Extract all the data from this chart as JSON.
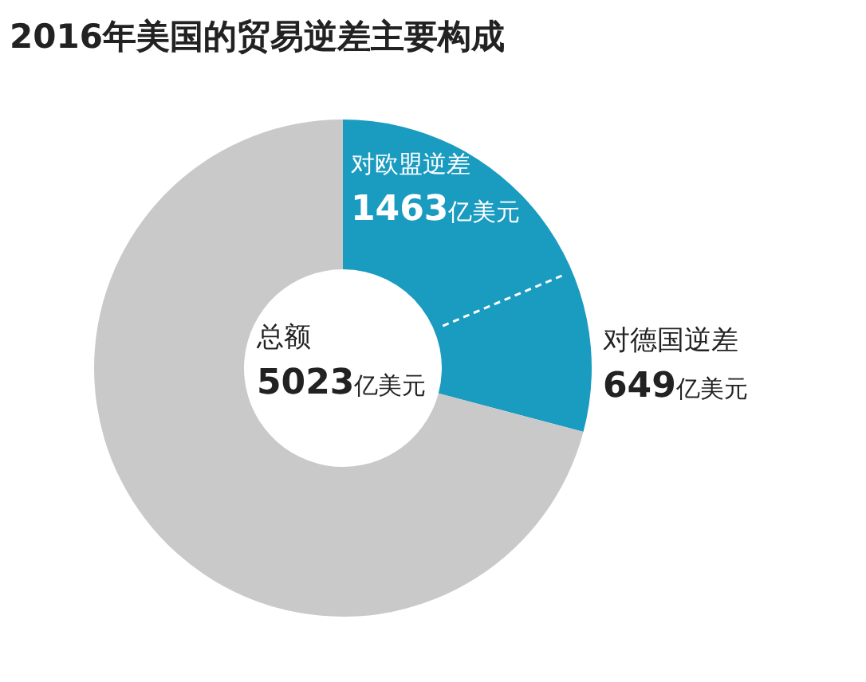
{
  "chart_data": {
    "type": "donut",
    "title": "2016年美国的贸易逆差主要构成",
    "categories": [
      "对欧盟逆差",
      null
    ],
    "values": [
      1463,
      3560
    ],
    "colors": [
      "#1a9bc0",
      "#c9c9c9"
    ],
    "value_labels": [
      "1463亿美元",
      null
    ],
    "annotations": [
      "总额",
      "5023亿美元",
      "对德国逆差",
      "649亿美元"
    ]
  }
}
